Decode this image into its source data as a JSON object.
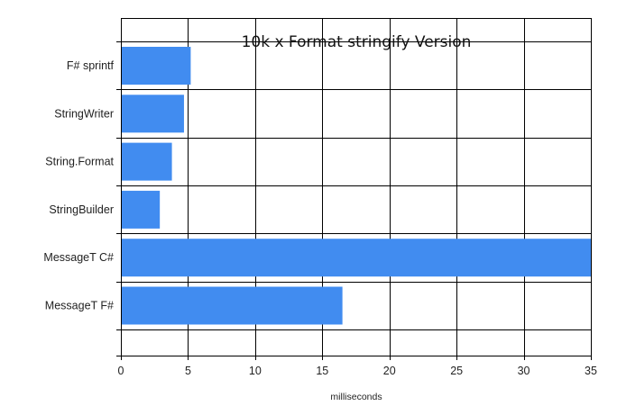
{
  "chart_data": {
    "type": "bar",
    "orientation": "horizontal",
    "title": "10k x Format stringify Version",
    "xlabel": "milliseconds",
    "ylabel": "",
    "categories": [
      "F# sprintf",
      "StringWriter",
      "String.Format",
      "StringBuilder",
      "MessageT C#",
      "MessageT F#"
    ],
    "values": [
      5.2,
      4.7,
      3.8,
      2.9,
      35,
      16.5
    ],
    "xlim": [
      0,
      35
    ],
    "xticks": [
      0,
      5,
      10,
      15,
      20,
      25,
      30,
      35
    ],
    "grid": true,
    "bar_color": "#418cf0"
  }
}
